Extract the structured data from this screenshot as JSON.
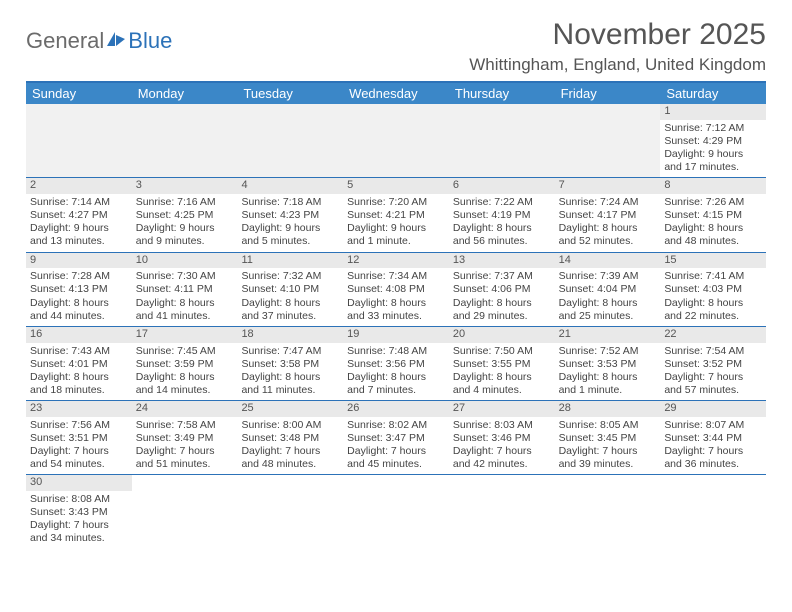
{
  "brand": {
    "general": "General",
    "blue": "Blue"
  },
  "title": "November 2025",
  "location": "Whittingham, England, United Kingdom",
  "colors": {
    "header_bar": "#3b87c8",
    "rule": "#2c72b8",
    "daynum_bg": "#e9e9e9",
    "text": "#555555",
    "body_text": "#444444"
  },
  "typography": {
    "title_fontsize": 30,
    "location_fontsize": 17,
    "dayhead_fontsize": 13,
    "cell_fontsize": 10.5
  },
  "day_names": [
    "Sunday",
    "Monday",
    "Tuesday",
    "Wednesday",
    "Thursday",
    "Friday",
    "Saturday"
  ],
  "weeks": [
    [
      null,
      null,
      null,
      null,
      null,
      null,
      {
        "n": "1",
        "sunrise": "Sunrise: 7:12 AM",
        "sunset": "Sunset: 4:29 PM",
        "day": "Daylight: 9 hours and 17 minutes."
      }
    ],
    [
      {
        "n": "2",
        "sunrise": "Sunrise: 7:14 AM",
        "sunset": "Sunset: 4:27 PM",
        "day": "Daylight: 9 hours and 13 minutes."
      },
      {
        "n": "3",
        "sunrise": "Sunrise: 7:16 AM",
        "sunset": "Sunset: 4:25 PM",
        "day": "Daylight: 9 hours and 9 minutes."
      },
      {
        "n": "4",
        "sunrise": "Sunrise: 7:18 AM",
        "sunset": "Sunset: 4:23 PM",
        "day": "Daylight: 9 hours and 5 minutes."
      },
      {
        "n": "5",
        "sunrise": "Sunrise: 7:20 AM",
        "sunset": "Sunset: 4:21 PM",
        "day": "Daylight: 9 hours and 1 minute."
      },
      {
        "n": "6",
        "sunrise": "Sunrise: 7:22 AM",
        "sunset": "Sunset: 4:19 PM",
        "day": "Daylight: 8 hours and 56 minutes."
      },
      {
        "n": "7",
        "sunrise": "Sunrise: 7:24 AM",
        "sunset": "Sunset: 4:17 PM",
        "day": "Daylight: 8 hours and 52 minutes."
      },
      {
        "n": "8",
        "sunrise": "Sunrise: 7:26 AM",
        "sunset": "Sunset: 4:15 PM",
        "day": "Daylight: 8 hours and 48 minutes."
      }
    ],
    [
      {
        "n": "9",
        "sunrise": "Sunrise: 7:28 AM",
        "sunset": "Sunset: 4:13 PM",
        "day": "Daylight: 8 hours and 44 minutes."
      },
      {
        "n": "10",
        "sunrise": "Sunrise: 7:30 AM",
        "sunset": "Sunset: 4:11 PM",
        "day": "Daylight: 8 hours and 41 minutes."
      },
      {
        "n": "11",
        "sunrise": "Sunrise: 7:32 AM",
        "sunset": "Sunset: 4:10 PM",
        "day": "Daylight: 8 hours and 37 minutes."
      },
      {
        "n": "12",
        "sunrise": "Sunrise: 7:34 AM",
        "sunset": "Sunset: 4:08 PM",
        "day": "Daylight: 8 hours and 33 minutes."
      },
      {
        "n": "13",
        "sunrise": "Sunrise: 7:37 AM",
        "sunset": "Sunset: 4:06 PM",
        "day": "Daylight: 8 hours and 29 minutes."
      },
      {
        "n": "14",
        "sunrise": "Sunrise: 7:39 AM",
        "sunset": "Sunset: 4:04 PM",
        "day": "Daylight: 8 hours and 25 minutes."
      },
      {
        "n": "15",
        "sunrise": "Sunrise: 7:41 AM",
        "sunset": "Sunset: 4:03 PM",
        "day": "Daylight: 8 hours and 22 minutes."
      }
    ],
    [
      {
        "n": "16",
        "sunrise": "Sunrise: 7:43 AM",
        "sunset": "Sunset: 4:01 PM",
        "day": "Daylight: 8 hours and 18 minutes."
      },
      {
        "n": "17",
        "sunrise": "Sunrise: 7:45 AM",
        "sunset": "Sunset: 3:59 PM",
        "day": "Daylight: 8 hours and 14 minutes."
      },
      {
        "n": "18",
        "sunrise": "Sunrise: 7:47 AM",
        "sunset": "Sunset: 3:58 PM",
        "day": "Daylight: 8 hours and 11 minutes."
      },
      {
        "n": "19",
        "sunrise": "Sunrise: 7:48 AM",
        "sunset": "Sunset: 3:56 PM",
        "day": "Daylight: 8 hours and 7 minutes."
      },
      {
        "n": "20",
        "sunrise": "Sunrise: 7:50 AM",
        "sunset": "Sunset: 3:55 PM",
        "day": "Daylight: 8 hours and 4 minutes."
      },
      {
        "n": "21",
        "sunrise": "Sunrise: 7:52 AM",
        "sunset": "Sunset: 3:53 PM",
        "day": "Daylight: 8 hours and 1 minute."
      },
      {
        "n": "22",
        "sunrise": "Sunrise: 7:54 AM",
        "sunset": "Sunset: 3:52 PM",
        "day": "Daylight: 7 hours and 57 minutes."
      }
    ],
    [
      {
        "n": "23",
        "sunrise": "Sunrise: 7:56 AM",
        "sunset": "Sunset: 3:51 PM",
        "day": "Daylight: 7 hours and 54 minutes."
      },
      {
        "n": "24",
        "sunrise": "Sunrise: 7:58 AM",
        "sunset": "Sunset: 3:49 PM",
        "day": "Daylight: 7 hours and 51 minutes."
      },
      {
        "n": "25",
        "sunrise": "Sunrise: 8:00 AM",
        "sunset": "Sunset: 3:48 PM",
        "day": "Daylight: 7 hours and 48 minutes."
      },
      {
        "n": "26",
        "sunrise": "Sunrise: 8:02 AM",
        "sunset": "Sunset: 3:47 PM",
        "day": "Daylight: 7 hours and 45 minutes."
      },
      {
        "n": "27",
        "sunrise": "Sunrise: 8:03 AM",
        "sunset": "Sunset: 3:46 PM",
        "day": "Daylight: 7 hours and 42 minutes."
      },
      {
        "n": "28",
        "sunrise": "Sunrise: 8:05 AM",
        "sunset": "Sunset: 3:45 PM",
        "day": "Daylight: 7 hours and 39 minutes."
      },
      {
        "n": "29",
        "sunrise": "Sunrise: 8:07 AM",
        "sunset": "Sunset: 3:44 PM",
        "day": "Daylight: 7 hours and 36 minutes."
      }
    ],
    [
      {
        "n": "30",
        "sunrise": "Sunrise: 8:08 AM",
        "sunset": "Sunset: 3:43 PM",
        "day": "Daylight: 7 hours and 34 minutes."
      },
      null,
      null,
      null,
      null,
      null,
      null
    ]
  ]
}
